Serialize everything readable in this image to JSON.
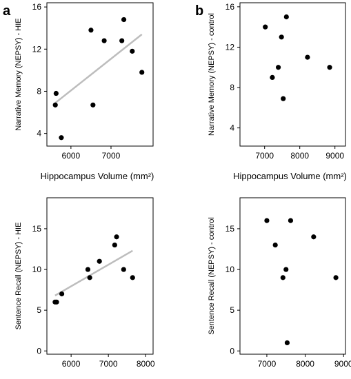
{
  "panel_letters": [
    "a",
    "b"
  ],
  "chart_data": [
    {
      "type": "scatter",
      "panel": "a",
      "xlabel": "Hippocampus Volume (mm²)",
      "ylabel": "Narrative Memory (NEPSY) - HIE",
      "xlim": [
        5400,
        8050
      ],
      "ylim": [
        2.8,
        16.4
      ],
      "xticks": [
        6000,
        7000
      ],
      "yticks": [
        4,
        8,
        12,
        16
      ],
      "points": [
        {
          "x": 5630,
          "y": 7.8
        },
        {
          "x": 5610,
          "y": 6.7
        },
        {
          "x": 5760,
          "y": 3.6
        },
        {
          "x": 6500,
          "y": 13.8
        },
        {
          "x": 6550,
          "y": 6.7
        },
        {
          "x": 6830,
          "y": 12.8
        },
        {
          "x": 7270,
          "y": 12.8
        },
        {
          "x": 7320,
          "y": 14.8
        },
        {
          "x": 7530,
          "y": 11.8
        },
        {
          "x": 7770,
          "y": 9.8
        }
      ],
      "trendline": [
        {
          "x": 5610,
          "y": 6.9
        },
        {
          "x": 7770,
          "y": 13.4
        }
      ],
      "grid": false
    },
    {
      "type": "scatter",
      "panel": "b",
      "xlabel": "Hippocampus Volume (mm²)",
      "ylabel": "Narrative Memory (NEPSY) - control",
      "xlim": [
        6300,
        9300
      ],
      "ylim": [
        2.2,
        16.4
      ],
      "xticks": [
        7000,
        8000,
        9000
      ],
      "yticks": [
        4,
        8,
        12,
        16
      ],
      "points": [
        {
          "x": 7020,
          "y": 14
        },
        {
          "x": 7220,
          "y": 9
        },
        {
          "x": 7390,
          "y": 10
        },
        {
          "x": 7480,
          "y": 13
        },
        {
          "x": 7530,
          "y": 6.9
        },
        {
          "x": 7620,
          "y": 15
        },
        {
          "x": 8220,
          "y": 11
        },
        {
          "x": 8850,
          "y": 10
        }
      ],
      "grid": false
    },
    {
      "type": "scatter",
      "panel": "a",
      "xlabel": "Hippocampus Volume (mm²)",
      "ylabel": "Sentence Recall (NEPSY) - HIE",
      "xlim": [
        5350,
        8200
      ],
      "ylim": [
        -0.4,
        18.8
      ],
      "xticks": [
        6000,
        7000,
        8000
      ],
      "yticks": [
        0,
        5,
        10,
        15
      ],
      "points": [
        {
          "x": 5570,
          "y": 6
        },
        {
          "x": 5610,
          "y": 6
        },
        {
          "x": 5750,
          "y": 7
        },
        {
          "x": 6450,
          "y": 10
        },
        {
          "x": 6500,
          "y": 9
        },
        {
          "x": 6760,
          "y": 11
        },
        {
          "x": 7170,
          "y": 13
        },
        {
          "x": 7220,
          "y": 14
        },
        {
          "x": 7410,
          "y": 10
        },
        {
          "x": 7650,
          "y": 9
        }
      ],
      "trendline": [
        {
          "x": 5570,
          "y": 6.8
        },
        {
          "x": 7650,
          "y": 12.3
        }
      ],
      "grid": false
    },
    {
      "type": "scatter",
      "panel": "b",
      "xlabel": "Hippocampus Volume (mm²)",
      "ylabel": "Sentence Recall (NEPSY) - control",
      "xlim": [
        6300,
        9050
      ],
      "ylim": [
        -0.4,
        18.8
      ],
      "xticks": [
        7000,
        8000,
        9000
      ],
      "yticks": [
        0,
        5,
        10,
        15
      ],
      "points": [
        {
          "x": 7000,
          "y": 16
        },
        {
          "x": 7220,
          "y": 13
        },
        {
          "x": 7420,
          "y": 9
        },
        {
          "x": 7500,
          "y": 10
        },
        {
          "x": 7530,
          "y": 1
        },
        {
          "x": 7620,
          "y": 16
        },
        {
          "x": 8220,
          "y": 14
        },
        {
          "x": 8800,
          "y": 9
        }
      ],
      "grid": false
    }
  ]
}
